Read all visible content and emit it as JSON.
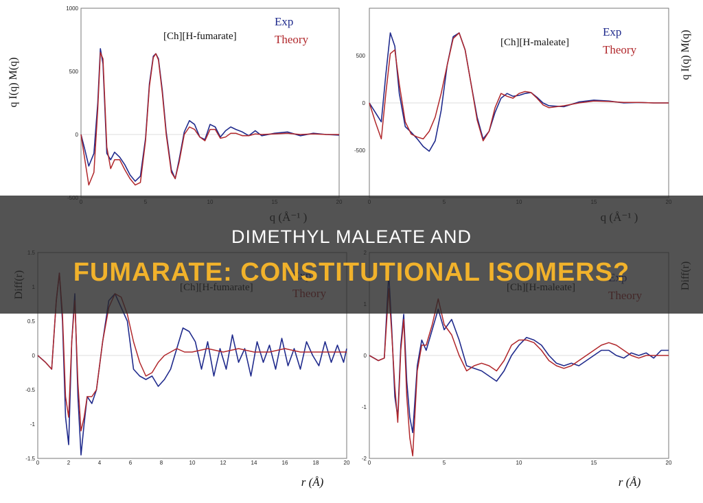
{
  "banner": {
    "line1": "DIMETHYL MALEATE AND",
    "line2": "FUMARATE: CONSTITUTIONAL ISOMERS?"
  },
  "colors": {
    "exp": "#1f2a8c",
    "theory": "#b0262a",
    "banner_title": "#f1b22b"
  },
  "chart_data": [
    {
      "type": "line",
      "title": "[Ch][H-fumarate]",
      "xlabel": "q (Å⁻¹ )",
      "ylabel": "q I(q) M(q)",
      "xlim": [
        0,
        20
      ],
      "ylim": [
        -500,
        1000
      ],
      "xticks": [
        0,
        5,
        10,
        15,
        20
      ],
      "yticks": [
        -500,
        0,
        500,
        1000
      ],
      "legend_position": "top-right",
      "series": [
        {
          "name": "Exp",
          "color": "#1f2a8c",
          "x": [
            0,
            0.3,
            0.6,
            1,
            1.3,
            1.5,
            1.7,
            2,
            2.3,
            2.6,
            3,
            3.4,
            3.8,
            4.2,
            4.6,
            5,
            5.3,
            5.6,
            5.8,
            6,
            6.3,
            6.6,
            7,
            7.3,
            7.6,
            8,
            8.4,
            8.8,
            9.2,
            9.6,
            10,
            10.4,
            10.8,
            11.2,
            11.6,
            12,
            12.5,
            13,
            13.5,
            14,
            15,
            16,
            17,
            18,
            19,
            20
          ],
          "y": [
            0,
            -120,
            -250,
            -150,
            250,
            680,
            560,
            -150,
            -200,
            -140,
            -180,
            -240,
            -320,
            -370,
            -330,
            -30,
            400,
            620,
            640,
            600,
            350,
            20,
            -280,
            -350,
            -200,
            20,
            110,
            80,
            -20,
            -40,
            80,
            60,
            -20,
            30,
            60,
            40,
            20,
            -10,
            30,
            -10,
            10,
            20,
            -10,
            10,
            0,
            -5
          ]
        },
        {
          "name": "Theory",
          "color": "#b0262a",
          "x": [
            0,
            0.3,
            0.6,
            1,
            1.3,
            1.5,
            1.7,
            2,
            2.3,
            2.6,
            3,
            3.4,
            3.8,
            4.2,
            4.6,
            5,
            5.3,
            5.6,
            5.8,
            6,
            6.3,
            6.6,
            7,
            7.3,
            7.6,
            8,
            8.4,
            8.8,
            9.2,
            9.6,
            10,
            10.4,
            10.8,
            11.2,
            11.6,
            12,
            12.5,
            13,
            13.5,
            14,
            15,
            16,
            17,
            18,
            19,
            20
          ],
          "y": [
            0,
            -200,
            -400,
            -300,
            200,
            650,
            600,
            -100,
            -270,
            -200,
            -200,
            -280,
            -350,
            -400,
            -380,
            -50,
            380,
            610,
            640,
            590,
            330,
            0,
            -300,
            -350,
            -220,
            0,
            60,
            40,
            -20,
            -50,
            40,
            40,
            -30,
            -20,
            10,
            10,
            -10,
            -10,
            5,
            0,
            5,
            10,
            0,
            5,
            0,
            0
          ]
        }
      ]
    },
    {
      "type": "line",
      "title": "[Ch][H-maleate]",
      "xlabel": "q (Å⁻¹ )",
      "ylabel": "q I(q) M(q)",
      "xlim": [
        0,
        20
      ],
      "ylim": [
        -1000,
        1000
      ],
      "xticks": [
        0,
        5,
        10,
        15,
        20
      ],
      "yticks": [
        -500,
        0,
        500
      ],
      "legend_position": "top-right",
      "series": [
        {
          "name": "Exp",
          "color": "#1f2a8c",
          "x": [
            0,
            0.4,
            0.8,
            1.1,
            1.4,
            1.7,
            2,
            2.4,
            2.8,
            3.2,
            3.6,
            4,
            4.4,
            4.8,
            5.2,
            5.6,
            6,
            6.4,
            6.8,
            7.2,
            7.6,
            8,
            8.4,
            8.8,
            9.2,
            9.6,
            10,
            10.4,
            10.8,
            11.2,
            11.6,
            12,
            13,
            14,
            15,
            16,
            17,
            18,
            19,
            20
          ],
          "y": [
            0,
            -100,
            -200,
            300,
            740,
            600,
            100,
            -250,
            -310,
            -380,
            -460,
            -510,
            -400,
            -80,
            400,
            700,
            740,
            560,
            200,
            -150,
            -380,
            -300,
            -100,
            50,
            100,
            70,
            80,
            100,
            110,
            60,
            0,
            -30,
            -40,
            10,
            30,
            20,
            0,
            5,
            0,
            0
          ]
        },
        {
          "name": "Theory",
          "color": "#b0262a",
          "x": [
            0,
            0.4,
            0.8,
            1.1,
            1.4,
            1.7,
            2,
            2.4,
            2.8,
            3.2,
            3.6,
            4,
            4.4,
            4.8,
            5.2,
            5.6,
            6,
            6.4,
            6.8,
            7.2,
            7.6,
            8,
            8.4,
            8.8,
            9.2,
            9.6,
            10,
            10.4,
            10.8,
            11.2,
            11.6,
            12,
            13,
            14,
            15,
            16,
            17,
            18,
            19,
            20
          ],
          "y": [
            0,
            -200,
            -380,
            100,
            520,
            560,
            200,
            -200,
            -330,
            -360,
            -380,
            -300,
            -150,
            100,
            400,
            680,
            740,
            560,
            200,
            -180,
            -400,
            -300,
            -50,
            100,
            70,
            50,
            100,
            120,
            110,
            50,
            -20,
            -50,
            -30,
            0,
            20,
            15,
            5,
            5,
            0,
            0
          ]
        }
      ]
    },
    {
      "type": "line",
      "title": "[Ch][H-fumarate]",
      "xlabel": "r (Å)",
      "ylabel": "Diff(r)",
      "xlim": [
        0,
        20
      ],
      "ylim": [
        -1.5,
        1.5
      ],
      "xticks": [
        0,
        2,
        4,
        6,
        8,
        10,
        12,
        14,
        16,
        18,
        20
      ],
      "yticks": [
        -1.5,
        -1,
        -0.5,
        0,
        0.5,
        1,
        1.5
      ],
      "legend_position": "top-right",
      "series": [
        {
          "name": "Exp",
          "color": "#1f2a8c",
          "x": [
            0,
            0.5,
            0.9,
            1.2,
            1.4,
            1.6,
            1.8,
            2,
            2.2,
            2.4,
            2.6,
            2.8,
            3,
            3.2,
            3.5,
            3.8,
            4.2,
            4.6,
            5,
            5.4,
            5.8,
            6.2,
            6.6,
            7,
            7.4,
            7.8,
            8.2,
            8.6,
            9,
            9.4,
            9.8,
            10.2,
            10.6,
            11,
            11.4,
            11.8,
            12.2,
            12.6,
            13,
            13.4,
            13.8,
            14.2,
            14.6,
            15,
            15.4,
            15.8,
            16.2,
            16.6,
            17,
            17.4,
            17.8,
            18.2,
            18.6,
            19,
            19.4,
            19.8,
            20
          ],
          "y": [
            0,
            -0.1,
            -0.2,
            0.8,
            1.2,
            0.5,
            -0.9,
            -1.3,
            0.2,
            0.9,
            -0.6,
            -1.45,
            -1,
            -0.6,
            -0.7,
            -0.5,
            0.2,
            0.8,
            0.9,
            0.7,
            0.5,
            -0.2,
            -0.3,
            -0.35,
            -0.3,
            -0.45,
            -0.35,
            -0.2,
            0.1,
            0.4,
            0.35,
            0.2,
            -0.2,
            0.2,
            -0.3,
            0.1,
            -0.2,
            0.3,
            -0.1,
            0.1,
            -0.3,
            0.2,
            -0.1,
            0.15,
            -0.2,
            0.25,
            -0.15,
            0.1,
            -0.2,
            0.2,
            0,
            -0.15,
            0.2,
            -0.1,
            0.15,
            -0.1,
            0.1
          ]
        },
        {
          "name": "Theory",
          "color": "#b0262a",
          "x": [
            0,
            0.5,
            0.9,
            1.2,
            1.4,
            1.6,
            1.8,
            2,
            2.2,
            2.4,
            2.6,
            2.8,
            3,
            3.2,
            3.5,
            3.8,
            4.2,
            4.6,
            5,
            5.4,
            5.8,
            6.2,
            6.6,
            7,
            7.4,
            7.8,
            8.2,
            8.6,
            9,
            9.5,
            10,
            11,
            12,
            13,
            14,
            15,
            16,
            17,
            18,
            19,
            20
          ],
          "y": [
            0,
            -0.1,
            -0.2,
            0.8,
            1.2,
            0.6,
            -0.6,
            -0.9,
            0.2,
            0.8,
            -0.4,
            -1.1,
            -0.9,
            -0.6,
            -0.6,
            -0.5,
            0.2,
            0.7,
            0.9,
            0.85,
            0.6,
            0.2,
            -0.1,
            -0.3,
            -0.25,
            -0.1,
            0,
            0.05,
            0.1,
            0.05,
            0.05,
            0.1,
            0.05,
            0.1,
            0.05,
            0.05,
            0.1,
            0.05,
            0.05,
            0.05,
            0.05
          ]
        }
      ]
    },
    {
      "type": "line",
      "title": "[Ch][H-maleate]",
      "xlabel": "r (Å)",
      "ylabel": "Diff(r)",
      "xlim": [
        0,
        20
      ],
      "ylim": [
        -2,
        2
      ],
      "xticks": [
        0,
        5,
        10,
        15,
        20
      ],
      "yticks": [
        -2,
        -1,
        0,
        1,
        2
      ],
      "legend_position": "top-right",
      "series": [
        {
          "name": "Exp",
          "color": "#1f2a8c",
          "x": [
            0,
            0.6,
            1,
            1.3,
            1.5,
            1.7,
            1.9,
            2.1,
            2.3,
            2.5,
            2.7,
            2.9,
            3.2,
            3.5,
            3.8,
            4.2,
            4.6,
            5,
            5.5,
            6,
            6.5,
            7,
            7.5,
            8,
            8.5,
            9,
            9.5,
            10,
            10.5,
            11,
            11.5,
            12,
            12.5,
            13,
            13.5,
            14,
            14.5,
            15,
            15.5,
            16,
            16.5,
            17,
            17.5,
            18,
            18.5,
            19,
            19.5,
            20
          ],
          "y": [
            0,
            -0.1,
            -0.05,
            1.6,
            0.5,
            -0.8,
            -1.2,
            0.2,
            0.8,
            -0.5,
            -1.2,
            -1.5,
            -0.2,
            0.3,
            0.1,
            0.5,
            0.9,
            0.5,
            0.7,
            0.3,
            -0.2,
            -0.25,
            -0.3,
            -0.4,
            -0.5,
            -0.3,
            0,
            0.2,
            0.35,
            0.3,
            0.2,
            0,
            -0.15,
            -0.2,
            -0.15,
            -0.2,
            -0.1,
            0,
            0.1,
            0.1,
            0,
            -0.05,
            0.05,
            0,
            0.05,
            -0.05,
            0.1,
            0.1
          ]
        },
        {
          "name": "Theory",
          "color": "#b0262a",
          "x": [
            0,
            0.6,
            1,
            1.3,
            1.5,
            1.7,
            1.9,
            2.1,
            2.3,
            2.5,
            2.7,
            2.9,
            3.2,
            3.5,
            3.8,
            4.2,
            4.6,
            5,
            5.5,
            6,
            6.5,
            7,
            7.5,
            8,
            8.5,
            9,
            9.5,
            10,
            10.5,
            11,
            11.5,
            12,
            12.5,
            13,
            13.5,
            14,
            14.5,
            15,
            15.5,
            16,
            16.5,
            17,
            17.5,
            18,
            18.5,
            19,
            19.5,
            20
          ],
          "y": [
            0,
            -0.1,
            -0.05,
            1.3,
            0.4,
            -0.6,
            -1.3,
            0.1,
            0.7,
            -0.8,
            -1.6,
            -1.95,
            -0.3,
            0.2,
            0.2,
            0.6,
            1.1,
            0.6,
            0.4,
            0,
            -0.3,
            -0.2,
            -0.15,
            -0.2,
            -0.3,
            -0.1,
            0.2,
            0.3,
            0.3,
            0.25,
            0.1,
            -0.1,
            -0.2,
            -0.25,
            -0.2,
            -0.1,
            0,
            0.1,
            0.2,
            0.25,
            0.2,
            0.1,
            0,
            -0.05,
            0,
            0,
            0,
            0
          ]
        }
      ]
    }
  ]
}
